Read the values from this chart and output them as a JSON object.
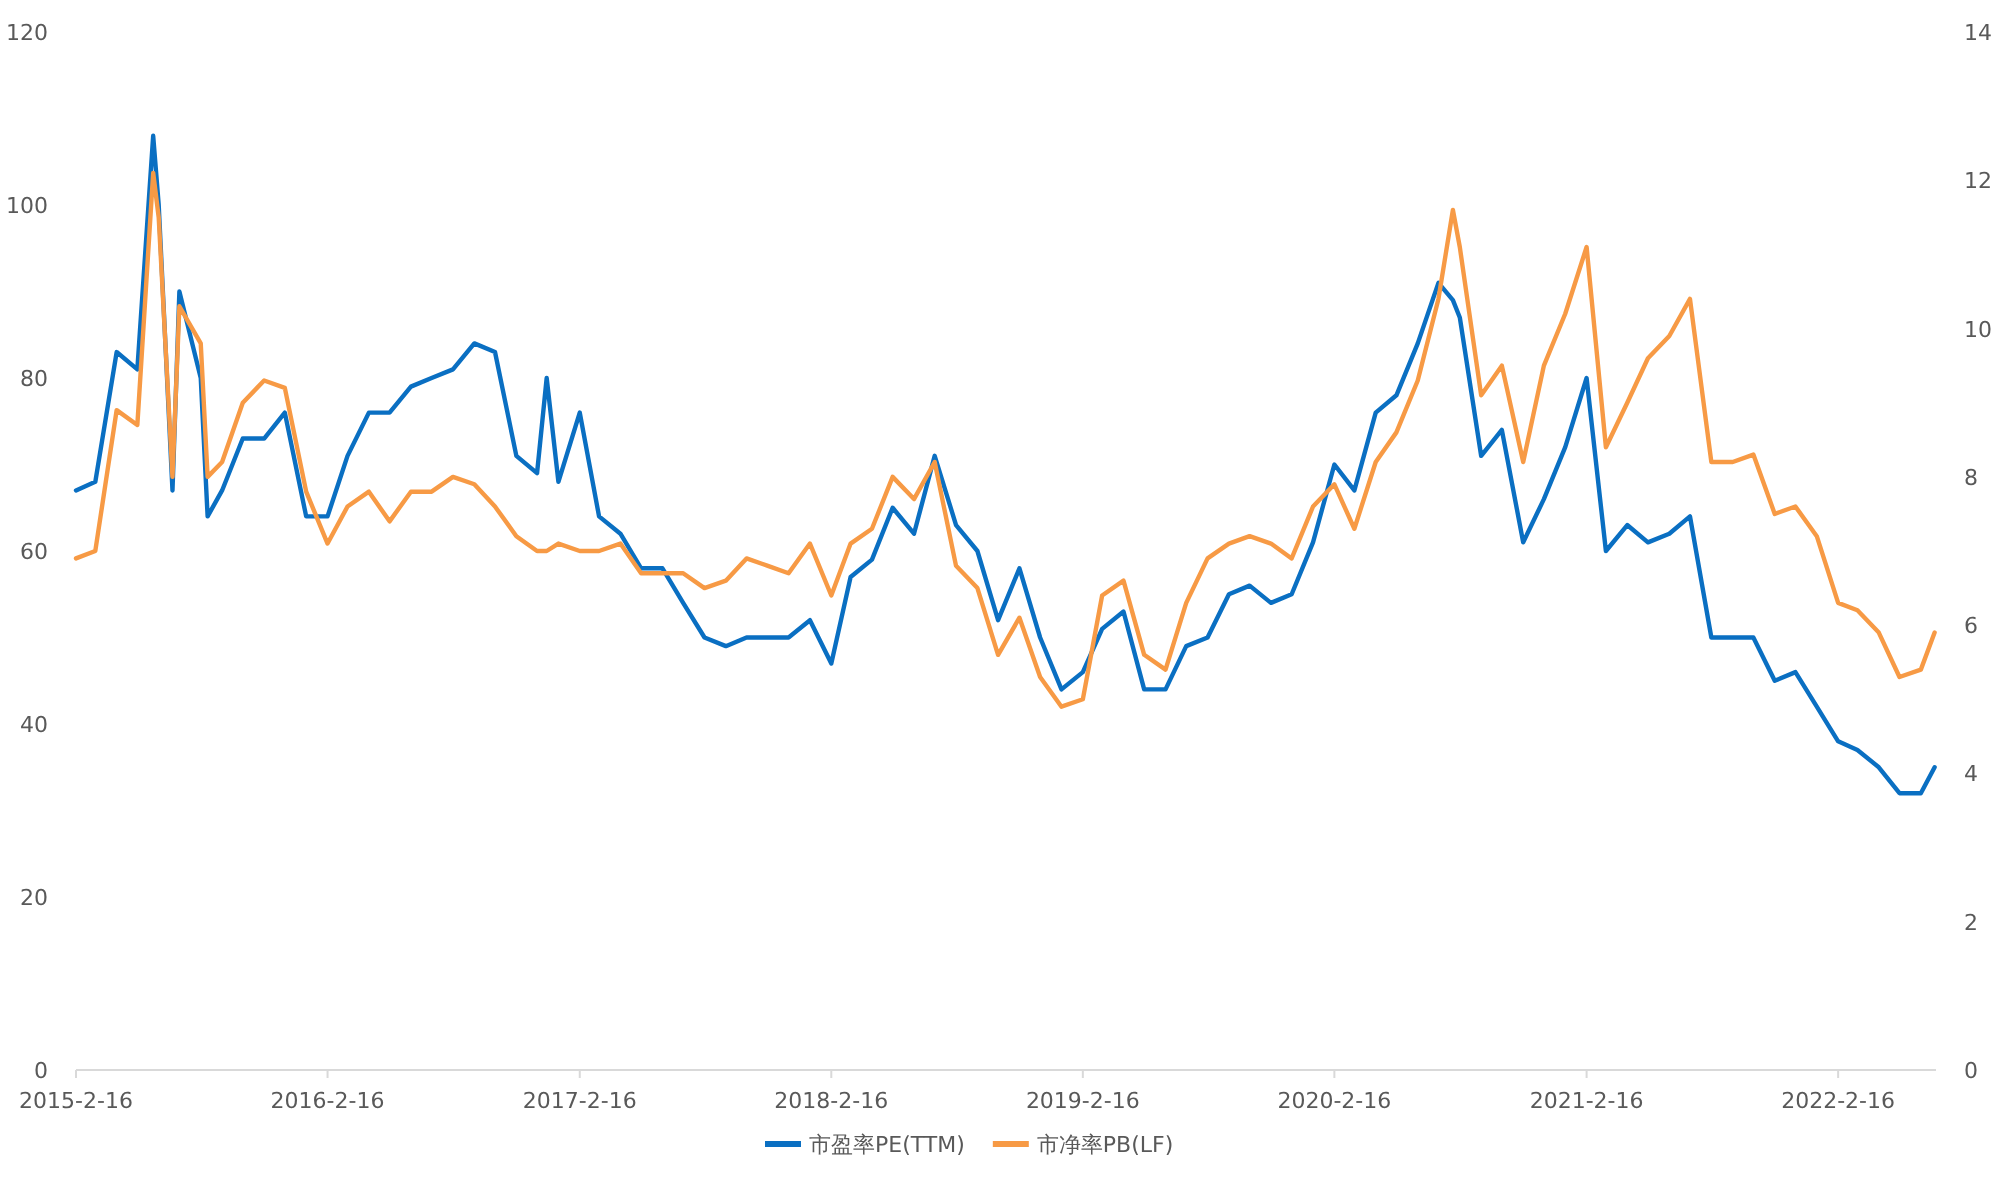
{
  "chart_data": {
    "type": "line",
    "legend": "bottom",
    "grid": false,
    "marker": "none",
    "line_style": "solid",
    "x": [
      "2015-02-16",
      "2015-03-16",
      "2015-04-16",
      "2015-05-16",
      "2015-06-08",
      "2015-06-16",
      "2015-07-06",
      "2015-07-16",
      "2015-08-16",
      "2015-08-26",
      "2015-09-16",
      "2015-10-16",
      "2015-11-16",
      "2015-12-16",
      "2016-01-16",
      "2016-02-16",
      "2016-03-16",
      "2016-04-16",
      "2016-05-16",
      "2016-06-16",
      "2016-07-16",
      "2016-08-16",
      "2016-09-16",
      "2016-10-16",
      "2016-11-16",
      "2016-12-16",
      "2016-12-30",
      "2017-01-16",
      "2017-02-16",
      "2017-03-16",
      "2017-04-16",
      "2017-05-16",
      "2017-06-16",
      "2017-07-16",
      "2017-08-16",
      "2017-09-16",
      "2017-10-16",
      "2017-11-16",
      "2017-12-16",
      "2018-01-16",
      "2018-02-16",
      "2018-03-16",
      "2018-04-16",
      "2018-05-16",
      "2018-06-16",
      "2018-07-16",
      "2018-08-16",
      "2018-09-16",
      "2018-10-16",
      "2018-11-16",
      "2018-12-16",
      "2019-01-16",
      "2019-02-16",
      "2019-03-16",
      "2019-04-16",
      "2019-05-16",
      "2019-06-16",
      "2019-07-16",
      "2019-08-16",
      "2019-09-16",
      "2019-10-16",
      "2019-11-16",
      "2019-12-16",
      "2020-01-16",
      "2020-02-16",
      "2020-03-16",
      "2020-04-16",
      "2020-05-16",
      "2020-06-16",
      "2020-07-16",
      "2020-08-06",
      "2020-08-16",
      "2020-09-16",
      "2020-10-16",
      "2020-11-16",
      "2020-12-16",
      "2021-01-16",
      "2021-02-16",
      "2021-03-16",
      "2021-04-16",
      "2021-05-16",
      "2021-06-16",
      "2021-07-16",
      "2021-08-16",
      "2021-09-16",
      "2021-10-16",
      "2021-11-16",
      "2021-12-16",
      "2022-01-16",
      "2022-02-16",
      "2022-03-16",
      "2022-04-16",
      "2022-05-16",
      "2022-06-16",
      "2022-07-06"
    ],
    "series": [
      {
        "name": "市盈率PE(TTM)",
        "color": "#0a6fc2",
        "values": [
          67,
          68,
          83,
          81,
          108,
          100,
          67,
          90,
          80,
          64,
          67,
          73,
          73,
          76,
          64,
          64,
          71,
          76,
          76,
          79,
          80,
          81,
          84,
          83,
          71,
          69,
          80,
          68,
          76,
          64,
          62,
          58,
          58,
          54,
          50,
          49,
          50,
          50,
          50,
          52,
          47,
          57,
          59,
          65,
          62,
          71,
          63,
          60,
          52,
          58,
          50,
          44,
          46,
          51,
          53,
          44,
          44,
          49,
          50,
          55,
          56,
          54,
          55,
          61,
          70,
          67,
          76,
          78,
          84,
          91,
          89,
          87,
          71,
          74,
          61,
          66,
          72,
          80,
          60,
          63,
          61,
          62,
          64,
          50,
          50,
          50,
          45,
          46,
          42,
          38,
          37,
          35,
          32,
          32,
          35
        ]
      },
      {
        "name": "市净率PB(LF)",
        "color": "#f79a45",
        "axis": "y2",
        "values": [
          6.9,
          7.0,
          8.9,
          8.7,
          12.1,
          11.5,
          8.0,
          10.3,
          9.8,
          8.0,
          8.2,
          9.0,
          9.3,
          9.2,
          7.8,
          7.1,
          7.6,
          7.8,
          7.4,
          7.8,
          7.8,
          8.0,
          7.9,
          7.6,
          7.2,
          7.0,
          7.0,
          7.1,
          7.0,
          7.0,
          7.1,
          6.7,
          6.7,
          6.7,
          6.5,
          6.6,
          6.9,
          6.8,
          6.7,
          7.1,
          6.4,
          7.1,
          7.3,
          8.0,
          7.7,
          8.2,
          6.8,
          6.5,
          5.6,
          6.1,
          5.3,
          4.9,
          5.0,
          6.4,
          6.6,
          5.6,
          5.4,
          6.3,
          6.9,
          7.1,
          7.2,
          7.1,
          6.9,
          7.6,
          7.9,
          7.3,
          8.2,
          8.6,
          9.3,
          10.4,
          11.6,
          11.1,
          9.1,
          9.5,
          8.2,
          9.5,
          10.2,
          11.1,
          8.4,
          9.0,
          9.6,
          9.9,
          10.4,
          8.2,
          8.2,
          8.3,
          7.5,
          7.6,
          7.2,
          6.3,
          6.2,
          5.9,
          5.3,
          5.4,
          5.9
        ]
      }
    ],
    "xlim": [
      "2015-02-16",
      "2022-07-08"
    ],
    "xticks": [
      {
        "value": "2015-02-16",
        "label": "2015-2-16"
      },
      {
        "value": "2016-02-16",
        "label": "2016-2-16"
      },
      {
        "value": "2017-02-16",
        "label": "2017-2-16"
      },
      {
        "value": "2018-02-16",
        "label": "2018-2-16"
      },
      {
        "value": "2019-02-16",
        "label": "2019-2-16"
      },
      {
        "value": "2020-02-16",
        "label": "2020-2-16"
      },
      {
        "value": "2021-02-16",
        "label": "2021-2-16"
      },
      {
        "value": "2022-02-16",
        "label": "2022-2-16"
      }
    ],
    "ylim": [
      0,
      120
    ],
    "yticks": [
      0,
      20,
      40,
      60,
      80,
      100,
      120
    ],
    "y2lim": [
      0,
      14
    ],
    "y2ticks": [
      0,
      2,
      4,
      6,
      8,
      10,
      12,
      14
    ]
  }
}
